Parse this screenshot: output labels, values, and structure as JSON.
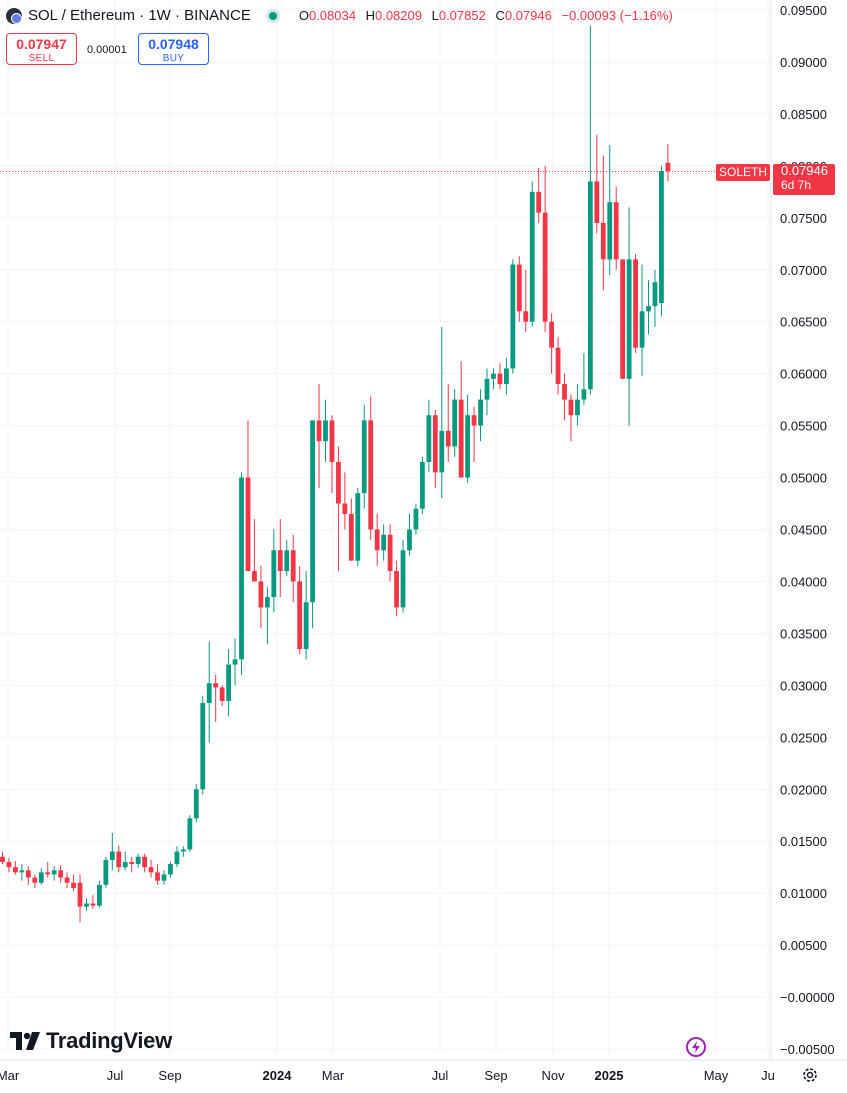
{
  "header": {
    "symbol_title": "SOL / Ethereum · 1W · BINANCE",
    "ohlc": {
      "o_key": "O",
      "o": "0.08034",
      "h_key": "H",
      "h": "0.08209",
      "l_key": "L",
      "l": "0.07852",
      "c_key": "C",
      "c": "0.07946",
      "change": "−0.00093 (−1.16%)"
    }
  },
  "trade": {
    "sell_price": "0.07947",
    "sell_label": "SELL",
    "spread": "0.00001",
    "buy_price": "0.07948",
    "buy_label": "BUY"
  },
  "price_tag": {
    "symbol": "SOLETH",
    "price": "0.07946",
    "countdown": "6d 7h",
    "color": "#f23645"
  },
  "branding": {
    "logo_text": "TradingView"
  },
  "colors": {
    "up": "#089981",
    "down": "#f23645",
    "grid": "#f0f3fa"
  },
  "icons": {
    "live": "live-dot-icon",
    "replay": "lightning-icon",
    "settings": "gear-icon",
    "symbol": "sol-eth-icon"
  },
  "chart_data": {
    "type": "candlestick",
    "title": "SOL / Ethereum · 1W · BINANCE",
    "y_ticks": [
      "0.09500",
      "0.09000",
      "0.08500",
      "0.08000",
      "0.07500",
      "0.07000",
      "0.06500",
      "0.06000",
      "0.05500",
      "0.05000",
      "0.04500",
      "0.04000",
      "0.03500",
      "0.03000",
      "0.02500",
      "0.02000",
      "0.01500",
      "0.01000",
      "0.00500",
      "−0.00000",
      "−0.00500"
    ],
    "y_range": [
      -0.0055,
      0.0955
    ],
    "x_ticks": [
      {
        "label": "Mar",
        "bold": false
      },
      {
        "label": "Jul",
        "bold": false
      },
      {
        "label": "Sep",
        "bold": false
      },
      {
        "label": "2024",
        "bold": true
      },
      {
        "label": "Mar",
        "bold": false
      },
      {
        "label": "Jul",
        "bold": false
      },
      {
        "label": "Sep",
        "bold": false
      },
      {
        "label": "Nov",
        "bold": false
      },
      {
        "label": "2025",
        "bold": true
      },
      {
        "label": "May",
        "bold": false
      },
      {
        "label": "Ju",
        "bold": false
      }
    ],
    "last_price": 0.07946,
    "candles": [
      [
        0.0135,
        0.014,
        0.0128,
        0.013
      ],
      [
        0.013,
        0.0134,
        0.012,
        0.0125
      ],
      [
        0.0125,
        0.0131,
        0.0118,
        0.012
      ],
      [
        0.012,
        0.0128,
        0.0112,
        0.0122
      ],
      [
        0.0122,
        0.0126,
        0.0108,
        0.0115
      ],
      [
        0.0115,
        0.0118,
        0.0105,
        0.011
      ],
      [
        0.011,
        0.0124,
        0.0108,
        0.012
      ],
      [
        0.012,
        0.013,
        0.0115,
        0.0118
      ],
      [
        0.0118,
        0.0126,
        0.0112,
        0.0122
      ],
      [
        0.0122,
        0.0127,
        0.011,
        0.0115
      ],
      [
        0.0115,
        0.012,
        0.0105,
        0.011
      ],
      [
        0.011,
        0.0118,
        0.0102,
        0.0105
      ],
      [
        0.011,
        0.0118,
        0.0072,
        0.0087
      ],
      [
        0.0087,
        0.0095,
        0.0083,
        0.009
      ],
      [
        0.009,
        0.0098,
        0.0085,
        0.0088
      ],
      [
        0.0088,
        0.0112,
        0.0086,
        0.0108
      ],
      [
        0.0108,
        0.0135,
        0.0105,
        0.0132
      ],
      [
        0.0132,
        0.0158,
        0.0122,
        0.014
      ],
      [
        0.014,
        0.0146,
        0.012,
        0.0125
      ],
      [
        0.0125,
        0.014,
        0.0122,
        0.013
      ],
      [
        0.013,
        0.0135,
        0.012,
        0.0128
      ],
      [
        0.0128,
        0.0138,
        0.0124,
        0.0135
      ],
      [
        0.0135,
        0.0138,
        0.012,
        0.0125
      ],
      [
        0.0125,
        0.0132,
        0.0115,
        0.012
      ],
      [
        0.012,
        0.0128,
        0.0108,
        0.0112
      ],
      [
        0.0112,
        0.0122,
        0.0108,
        0.0118
      ],
      [
        0.0118,
        0.013,
        0.0115,
        0.0128
      ],
      [
        0.0128,
        0.0145,
        0.0125,
        0.014
      ],
      [
        0.014,
        0.0145,
        0.0135,
        0.0142
      ],
      [
        0.0142,
        0.0175,
        0.014,
        0.0172
      ],
      [
        0.0172,
        0.0205,
        0.0168,
        0.02
      ],
      [
        0.02,
        0.029,
        0.0195,
        0.0283
      ],
      [
        0.0283,
        0.0342,
        0.0245,
        0.0302
      ],
      [
        0.0302,
        0.031,
        0.0265,
        0.0298
      ],
      [
        0.0298,
        0.03,
        0.028,
        0.0285
      ],
      [
        0.0285,
        0.0335,
        0.027,
        0.032
      ],
      [
        0.032,
        0.0345,
        0.03,
        0.0325
      ],
      [
        0.0325,
        0.0505,
        0.031,
        0.05
      ],
      [
        0.05,
        0.0555,
        0.041,
        0.041
      ],
      [
        0.041,
        0.046,
        0.04,
        0.04
      ],
      [
        0.04,
        0.0415,
        0.0355,
        0.0375
      ],
      [
        0.0375,
        0.0395,
        0.034,
        0.0385
      ],
      [
        0.0385,
        0.045,
        0.037,
        0.043
      ],
      [
        0.043,
        0.046,
        0.0385,
        0.041
      ],
      [
        0.041,
        0.044,
        0.0405,
        0.043
      ],
      [
        0.043,
        0.0445,
        0.038,
        0.04
      ],
      [
        0.04,
        0.0415,
        0.033,
        0.0335
      ],
      [
        0.0335,
        0.041,
        0.0325,
        0.038
      ],
      [
        0.038,
        0.0555,
        0.0355,
        0.0555
      ],
      [
        0.0555,
        0.059,
        0.049,
        0.0535
      ],
      [
        0.0535,
        0.0575,
        0.0515,
        0.0555
      ],
      [
        0.0555,
        0.056,
        0.0485,
        0.0515
      ],
      [
        0.0515,
        0.053,
        0.041,
        0.0475
      ],
      [
        0.0475,
        0.0505,
        0.045,
        0.0465
      ],
      [
        0.0465,
        0.048,
        0.042,
        0.042
      ],
      [
        0.042,
        0.049,
        0.0415,
        0.0485
      ],
      [
        0.0485,
        0.057,
        0.047,
        0.0555
      ],
      [
        0.0555,
        0.0578,
        0.044,
        0.045
      ],
      [
        0.045,
        0.0465,
        0.0415,
        0.043
      ],
      [
        0.043,
        0.0455,
        0.042,
        0.0445
      ],
      [
        0.0445,
        0.0455,
        0.04,
        0.041
      ],
      [
        0.041,
        0.042,
        0.0367,
        0.0375
      ],
      [
        0.0375,
        0.044,
        0.037,
        0.043
      ],
      [
        0.043,
        0.0465,
        0.0425,
        0.045
      ],
      [
        0.045,
        0.0475,
        0.0445,
        0.047
      ],
      [
        0.047,
        0.052,
        0.0465,
        0.0515
      ],
      [
        0.0515,
        0.0575,
        0.0505,
        0.056
      ],
      [
        0.056,
        0.0565,
        0.049,
        0.0505
      ],
      [
        0.0505,
        0.0645,
        0.048,
        0.0545
      ],
      [
        0.0545,
        0.059,
        0.0515,
        0.053
      ],
      [
        0.053,
        0.0585,
        0.052,
        0.0575
      ],
      [
        0.0575,
        0.0612,
        0.05,
        0.05
      ],
      [
        0.05,
        0.058,
        0.0495,
        0.056
      ],
      [
        0.056,
        0.0568,
        0.0515,
        0.055
      ],
      [
        0.055,
        0.0585,
        0.0535,
        0.0575
      ],
      [
        0.0575,
        0.0605,
        0.056,
        0.0595
      ],
      [
        0.0595,
        0.0605,
        0.0585,
        0.06
      ],
      [
        0.06,
        0.061,
        0.0585,
        0.059
      ],
      [
        0.059,
        0.0615,
        0.058,
        0.0605
      ],
      [
        0.0605,
        0.071,
        0.06,
        0.0705
      ],
      [
        0.0705,
        0.0713,
        0.065,
        0.066
      ],
      [
        0.066,
        0.07,
        0.064,
        0.065
      ],
      [
        0.065,
        0.0785,
        0.0645,
        0.0775
      ],
      [
        0.0775,
        0.0798,
        0.0745,
        0.0755
      ],
      [
        0.0755,
        0.08,
        0.064,
        0.065
      ],
      [
        0.065,
        0.0658,
        0.06,
        0.0625
      ],
      [
        0.0625,
        0.0635,
        0.058,
        0.059
      ],
      [
        0.059,
        0.06,
        0.0555,
        0.0575
      ],
      [
        0.0575,
        0.058,
        0.0535,
        0.056
      ],
      [
        0.056,
        0.059,
        0.055,
        0.0575
      ],
      [
        0.0575,
        0.062,
        0.057,
        0.0585
      ],
      [
        0.0585,
        0.0935,
        0.058,
        0.0785
      ],
      [
        0.0785,
        0.083,
        0.0735,
        0.0745
      ],
      [
        0.0745,
        0.081,
        0.068,
        0.071
      ],
      [
        0.071,
        0.082,
        0.0695,
        0.0765
      ],
      [
        0.0765,
        0.078,
        0.07,
        0.071
      ],
      [
        0.071,
        0.071,
        0.0595,
        0.0595
      ],
      [
        0.0595,
        0.076,
        0.055,
        0.071
      ],
      [
        0.071,
        0.0715,
        0.062,
        0.0625
      ],
      [
        0.0625,
        0.0705,
        0.0598,
        0.066
      ],
      [
        0.066,
        0.069,
        0.0638,
        0.0665
      ],
      [
        0.0665,
        0.07,
        0.0645,
        0.0688
      ],
      [
        0.0668,
        0.08,
        0.0655,
        0.0795
      ],
      [
        0.0803,
        0.0821,
        0.0785,
        0.0795
      ]
    ]
  }
}
